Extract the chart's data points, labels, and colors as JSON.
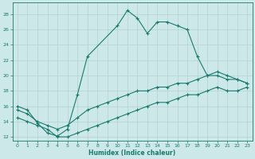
{
  "xlabel": "Humidex (Indice chaleur)",
  "background_color": "#cce8e8",
  "grid_color": "#b8d4d4",
  "line_color": "#1a7a6e",
  "xlim": [
    -0.5,
    23.5
  ],
  "ylim": [
    11.5,
    29.5
  ],
  "yticks": [
    12,
    14,
    16,
    18,
    20,
    22,
    24,
    26,
    28
  ],
  "xticks": [
    0,
    1,
    2,
    3,
    4,
    5,
    6,
    7,
    8,
    9,
    10,
    11,
    12,
    13,
    14,
    15,
    16,
    17,
    18,
    19,
    20,
    21,
    22,
    23
  ],
  "series": [
    {
      "x": [
        0,
        1,
        2,
        3,
        4,
        5,
        6,
        7,
        10,
        11,
        12,
        13,
        14,
        15,
        16,
        17,
        18,
        19,
        20,
        21,
        22,
        23
      ],
      "y": [
        16,
        15.5,
        13.8,
        12.5,
        12.1,
        13.0,
        17.5,
        22.5,
        26.5,
        28.5,
        27.5,
        25.5,
        27.0,
        27.0,
        26.5,
        26.0,
        22.5,
        20.0,
        20.0,
        19.5,
        19.5,
        19.0
      ]
    },
    {
      "x": [
        0,
        1,
        2,
        3,
        4,
        5,
        6,
        7,
        8,
        9,
        10,
        11,
        12,
        13,
        14,
        15,
        16,
        17,
        18,
        19,
        20,
        21,
        22,
        23
      ],
      "y": [
        15.5,
        15.0,
        14.0,
        13.5,
        13.0,
        13.5,
        14.5,
        15.5,
        16.0,
        16.5,
        17.0,
        17.5,
        18.0,
        18.0,
        18.5,
        18.5,
        19.0,
        19.0,
        19.5,
        20.0,
        20.5,
        20.0,
        19.5,
        19.0
      ]
    },
    {
      "x": [
        0,
        1,
        2,
        3,
        4,
        5,
        6,
        7,
        8,
        9,
        10,
        11,
        12,
        13,
        14,
        15,
        16,
        17,
        18,
        19,
        20,
        21,
        22,
        23
      ],
      "y": [
        14.5,
        14.0,
        13.5,
        13.0,
        12.0,
        12.0,
        12.5,
        13.0,
        13.5,
        14.0,
        14.5,
        15.0,
        15.5,
        16.0,
        16.5,
        16.5,
        17.0,
        17.5,
        17.5,
        18.0,
        18.5,
        18.0,
        18.0,
        18.5
      ]
    }
  ]
}
